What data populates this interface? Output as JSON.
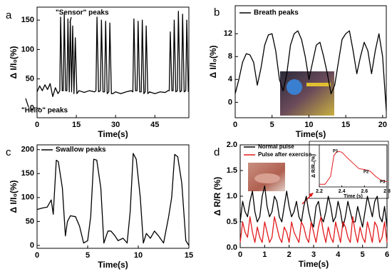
{
  "chart_data": [
    {
      "type": "line",
      "panel_label": "a",
      "x_label": "Time(s)",
      "y_label": "Δ I/I₀(%)",
      "xlim": [
        0,
        58
      ],
      "ylim": [
        -16,
        172
      ],
      "xticks": [
        0,
        15,
        30,
        45
      ],
      "yticks": [
        0,
        50,
        100,
        150
      ],
      "annotations": [
        "\"Sensor\" peaks",
        "\"Hello\" peaks"
      ],
      "series": [
        {
          "color": "#000000",
          "x": [
            0,
            1,
            2,
            3,
            4,
            5,
            6,
            7,
            8,
            8.7,
            9,
            9.6,
            10,
            10.4,
            10.9,
            11.4,
            11.8,
            12.3,
            12.7,
            13.2,
            13.6,
            14.1,
            14.6,
            15.2,
            16,
            18,
            20,
            22,
            22.5,
            22.9,
            23.5,
            24.2,
            24.6,
            25.2,
            25.8,
            26.2,
            26.8,
            27.4,
            27.8,
            28.4,
            29,
            30,
            32,
            34,
            36,
            36.6,
            37,
            37.6,
            38.2,
            38.6,
            39.2,
            39.8,
            40.2,
            40.8,
            41.3,
            41.7,
            42.3,
            43,
            45,
            47,
            49,
            50,
            50.5,
            50.9,
            51.5,
            52,
            52.4,
            53,
            53.6,
            54,
            54.6,
            55.2,
            55.6,
            56.2,
            56.8,
            57.2,
            57.8
          ],
          "values": [
            28,
            38,
            30,
            40,
            32,
            42,
            20,
            35,
            25,
            30,
            155,
            30,
            30,
            160,
            30,
            30,
            152,
            28,
            150,
            28,
            140,
            25,
            120,
            25,
            30,
            27,
            30,
            28,
            30,
            155,
            28,
            30,
            150,
            28,
            28,
            148,
            25,
            28,
            145,
            25,
            25,
            28,
            25,
            28,
            30,
            28,
            152,
            30,
            30,
            148,
            28,
            28,
            150,
            25,
            28,
            140,
            25,
            28,
            25,
            28,
            27,
            30,
            30,
            130,
            30,
            30,
            150,
            28,
            30,
            165,
            28,
            30,
            160,
            28,
            30,
            150,
            28
          ]
        }
      ]
    },
    {
      "type": "line",
      "panel_label": "b",
      "x_label": "Time(s)",
      "y_label": "Δ I/I₀(%)",
      "xlim": [
        0,
        20.5
      ],
      "ylim": [
        -2.7,
        16.9
      ],
      "xticks": [
        0,
        5,
        10,
        15,
        20
      ],
      "yticks": [
        0,
        4,
        8,
        12
      ],
      "series": [
        {
          "name": "Breath peaks",
          "color": "#000000",
          "x": [
            0,
            0.5,
            1,
            1.5,
            2,
            2.5,
            3,
            3.5,
            4,
            4.5,
            5,
            5.5,
            6,
            6.5,
            7,
            7.5,
            8,
            8.5,
            9,
            9.5,
            10,
            10.5,
            11,
            11.5,
            12,
            12.5,
            13,
            13.5,
            14,
            14.5,
            15,
            15.5,
            16,
            16.5,
            17,
            17.5,
            18,
            18.5,
            19,
            19.5,
            20,
            20.5
          ],
          "values": [
            1.5,
            4,
            7,
            8.5,
            8.3,
            7,
            3,
            6,
            10,
            11.8,
            12,
            9,
            4,
            2,
            5,
            10,
            12,
            12.5,
            11,
            8,
            4,
            7,
            10,
            10.5,
            8,
            5,
            1.5,
            3,
            7,
            11,
            12,
            12.5,
            9,
            5,
            8,
            10.5,
            9,
            5,
            9,
            12,
            8,
            -1.5
          ]
        }
      ]
    },
    {
      "type": "line",
      "panel_label": "c",
      "x_label": "Time(s)",
      "y_label": "Δ I/I₀(%)",
      "xlim": [
        0,
        15
      ],
      "ylim": [
        -6,
        210
      ],
      "xticks": [
        0,
        5,
        10,
        15
      ],
      "yticks": [
        0,
        50,
        100,
        150,
        200
      ],
      "series": [
        {
          "name": "Swallow peaks",
          "color": "#000000",
          "x": [
            0,
            0.5,
            1,
            1.4,
            1.6,
            1.9,
            2.1,
            2.5,
            2.8,
            3,
            3.3,
            3.8,
            4.2,
            4.6,
            5,
            5.3,
            5.6,
            5.9,
            6.3,
            6.6,
            7,
            7.3,
            7.7,
            8,
            8.5,
            8.9,
            9.2,
            9.5,
            9.8,
            10.2,
            10.5,
            10.8,
            11.2,
            11.6,
            12,
            12.5,
            13,
            13.3,
            13.6,
            13.9,
            14.3,
            14.7,
            15
          ],
          "values": [
            75,
            78,
            80,
            95,
            65,
            178,
            175,
            120,
            20,
            50,
            62,
            60,
            40,
            5,
            10,
            60,
            180,
            178,
            120,
            5,
            30,
            30,
            20,
            10,
            15,
            5,
            70,
            192,
            180,
            100,
            5,
            25,
            15,
            30,
            20,
            5,
            60,
            100,
            190,
            185,
            130,
            10,
            0
          ]
        }
      ]
    },
    {
      "type": "line",
      "panel_label": "d",
      "x_label": "Time(s)",
      "y_label": "Δ R/R (%)",
      "xlim": [
        0,
        6
      ],
      "ylim": [
        0,
        2.0
      ],
      "xticks": [
        0,
        1,
        2,
        3,
        4,
        5,
        6
      ],
      "yticks": [
        {
          "value": 0,
          "label": "0.0"
        },
        {
          "value": 0.5,
          "label": "0.5"
        },
        {
          "value": 1,
          "label": "1.0"
        },
        {
          "value": 1.5,
          "label": "1.5"
        },
        {
          "value": 2,
          "label": "2.0"
        }
      ],
      "series": [
        {
          "name": "Normal pulse",
          "color": "#000000",
          "x": [
            0,
            0.1,
            0.2,
            0.3,
            0.4,
            0.5,
            0.6,
            0.7,
            0.8,
            0.9,
            1,
            1.1,
            1.2,
            1.3,
            1.4,
            1.5,
            1.6,
            1.7,
            1.8,
            1.9,
            2,
            2.1,
            2.2,
            2.3,
            2.4,
            2.5,
            2.6,
            2.7,
            2.8,
            2.9,
            3,
            3.1,
            3.2,
            3.3,
            3.4,
            3.5,
            3.6,
            3.7,
            3.8,
            3.9,
            4,
            4.1,
            4.2,
            4.3,
            4.4,
            4.5,
            4.6,
            4.7,
            4.8,
            4.9,
            5,
            5.1,
            5.2,
            5.3,
            5.4,
            5.5,
            5.6,
            5.7,
            5.8,
            5.9,
            6
          ],
          "values": [
            0.5,
            0.9,
            0.7,
            0.6,
            0.9,
            1.1,
            0.7,
            0.5,
            0.6,
            1.0,
            1.2,
            0.8,
            0.6,
            0.7,
            1.0,
            0.9,
            0.6,
            0.5,
            0.8,
            1.1,
            0.8,
            0.6,
            0.7,
            0.9,
            0.6,
            0.5,
            0.8,
            1.0,
            0.7,
            0.5,
            0.4,
            0.8,
            0.9,
            0.6,
            0.5,
            0.7,
            1.0,
            0.8,
            0.5,
            0.6,
            0.9,
            0.7,
            0.4,
            0.6,
            0.9,
            0.7,
            0.5,
            0.5,
            0.8,
            0.6,
            0.4,
            0.7,
            1.0,
            0.8,
            0.6,
            0.9,
            1.0,
            0.6,
            0.5,
            0.8,
            0.4
          ]
        },
        {
          "name": "Pulse after exercise",
          "color": "#e31a1c",
          "x": [
            0,
            0.1,
            0.2,
            0.3,
            0.4,
            0.5,
            0.6,
            0.7,
            0.8,
            0.9,
            1,
            1.1,
            1.2,
            1.3,
            1.4,
            1.5,
            1.6,
            1.7,
            1.8,
            1.9,
            2,
            2.1,
            2.2,
            2.3,
            2.4,
            2.5,
            2.6,
            2.7,
            2.8,
            2.9,
            3,
            3.1,
            3.2,
            3.3,
            3.4,
            3.5,
            3.6,
            3.7,
            3.8,
            3.9,
            4,
            4.1,
            4.2,
            4.3,
            4.4,
            4.5,
            4.6,
            4.7,
            4.8,
            4.9,
            5,
            5.1,
            5.2,
            5.3,
            5.4,
            5.5,
            5.6,
            5.7,
            5.8,
            5.9,
            6
          ],
          "values": [
            0.1,
            0.5,
            0.3,
            0.2,
            0.6,
            0.3,
            0.1,
            0.4,
            0.2,
            0.1,
            0.5,
            0.3,
            0.1,
            0.2,
            0.6,
            0.4,
            0.2,
            0.1,
            0.4,
            0.3,
            0.1,
            0.5,
            0.3,
            0.2,
            0.1,
            0.5,
            0.4,
            0.2,
            0.1,
            0.5,
            0.3,
            0.1,
            0.4,
            0.6,
            0.3,
            0.1,
            0.4,
            0.2,
            0.1,
            0.5,
            0.3,
            0.1,
            0.5,
            0.4,
            0.2,
            0.1,
            0.6,
            0.3,
            0.1,
            0.4,
            0.2,
            0.1,
            0.5,
            0.3,
            0.1,
            0.5,
            0.4,
            0.1,
            0.2,
            0.5,
            0.1
          ]
        }
      ]
    },
    {
      "type": "line",
      "x_label": "Time (s)",
      "y_label": "Δ R/R₀(%)",
      "xlim": [
        2.2,
        2.8
      ],
      "ylim": [
        0,
        0.8
      ],
      "xticks": [
        2.2,
        2.4,
        2.6,
        2.8
      ],
      "annotations": [
        "P1",
        "P2",
        "P3"
      ],
      "series": [
        {
          "color": "#e31a1c",
          "x": [
            2.2,
            2.25,
            2.3,
            2.33,
            2.36,
            2.4,
            2.45,
            2.5,
            2.55,
            2.6,
            2.65,
            2.7,
            2.75,
            2.8
          ],
          "values": [
            0.05,
            0.05,
            0.2,
            0.6,
            0.68,
            0.66,
            0.55,
            0.45,
            0.35,
            0.33,
            0.3,
            0.2,
            0.12,
            0.1
          ]
        }
      ]
    }
  ]
}
